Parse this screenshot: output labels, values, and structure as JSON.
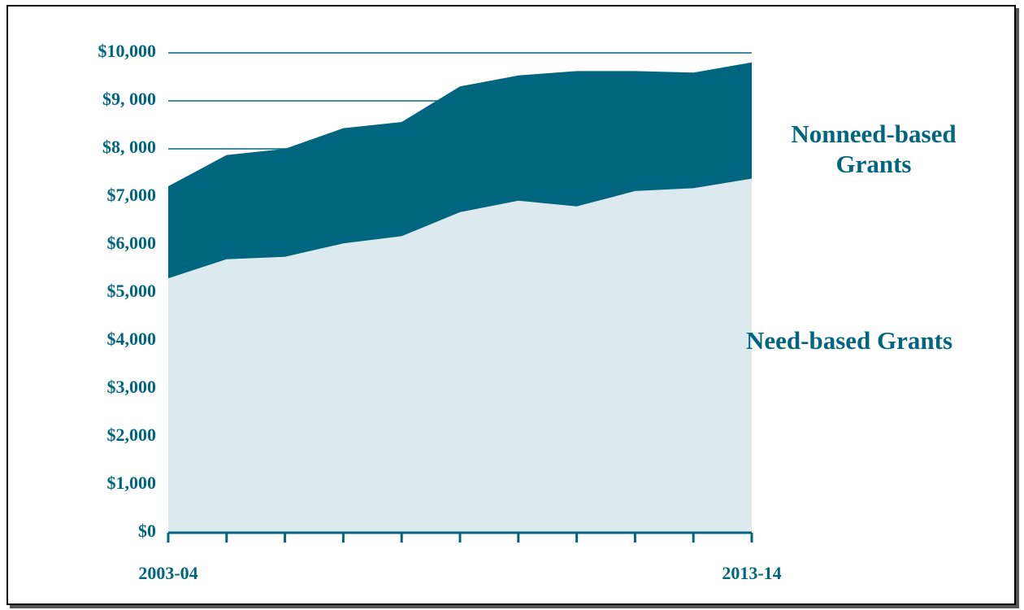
{
  "chart_data": {
    "type": "stacked_area",
    "categories": [
      "2003-04",
      null,
      null,
      null,
      null,
      null,
      null,
      null,
      null,
      null,
      "2013-14"
    ],
    "series": [
      {
        "name": "Need-based Grants",
        "color": "#dce9ef",
        "values": [
          5300,
          5700,
          5750,
          6030,
          6180,
          6680,
          6920,
          6800,
          7120,
          7180,
          7380
        ]
      },
      {
        "name": "Nonneed-based Grants",
        "color": "#006680",
        "values": [
          1920,
          2170,
          2250,
          2400,
          2380,
          2620,
          2610,
          2820,
          2500,
          2410,
          2420
        ]
      }
    ],
    "ylim": [
      0,
      10000
    ],
    "yticks": [
      {
        "value": 0,
        "label": "$0"
      },
      {
        "value": 1000,
        "label": "$1,000"
      },
      {
        "value": 2000,
        "label": "$2,000"
      },
      {
        "value": 3000,
        "label": "$3,000"
      },
      {
        "value": 4000,
        "label": "$4,000"
      },
      {
        "value": 5000,
        "label": "$5,000"
      },
      {
        "value": 6000,
        "label": "$6,000"
      },
      {
        "value": 7000,
        "label": "$7,000"
      },
      {
        "value": 8000,
        "label": "$8, 000"
      },
      {
        "value": 9000,
        "label": "$9, 000"
      },
      {
        "value": 10000,
        "label": "$10,000"
      }
    ],
    "grid": true
  }
}
